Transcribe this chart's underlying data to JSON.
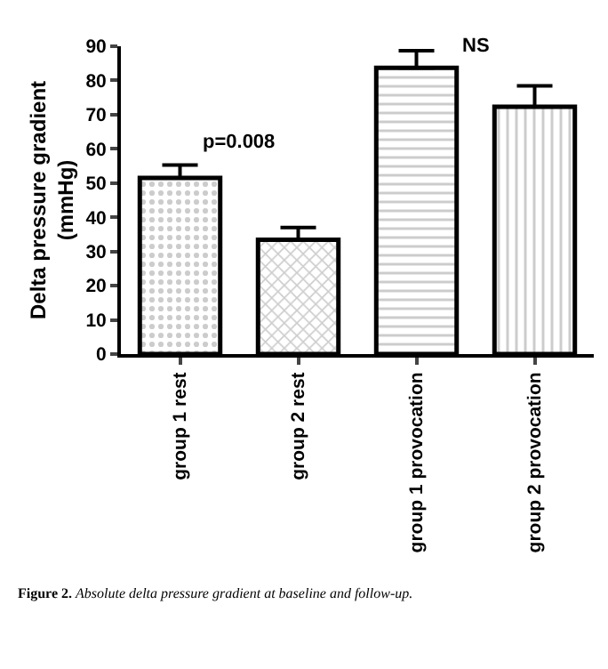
{
  "chart_data": {
    "type": "bar",
    "ylabel": "Delta pressure gradient (mmHg)",
    "categories": [
      "group 1 rest",
      "group 2 rest",
      "group 1 provocation",
      "group 2 provocation"
    ],
    "values": [
      51.5,
      33.4,
      83.7,
      72.3
    ],
    "errors": [
      [
        51.5,
        55.3
      ],
      [
        33.4,
        37.0
      ],
      [
        83.7,
        88.7
      ],
      [
        72.3,
        78.4
      ]
    ],
    "ylim": [
      0,
      90
    ],
    "yticks": [
      0,
      10,
      20,
      30,
      40,
      50,
      60,
      70,
      80,
      90
    ],
    "annotations": [
      "p=0.008",
      "NS",
      "Figure 2. Absolute delta pressure gradient at baseline and follow-up."
    ]
  }
}
